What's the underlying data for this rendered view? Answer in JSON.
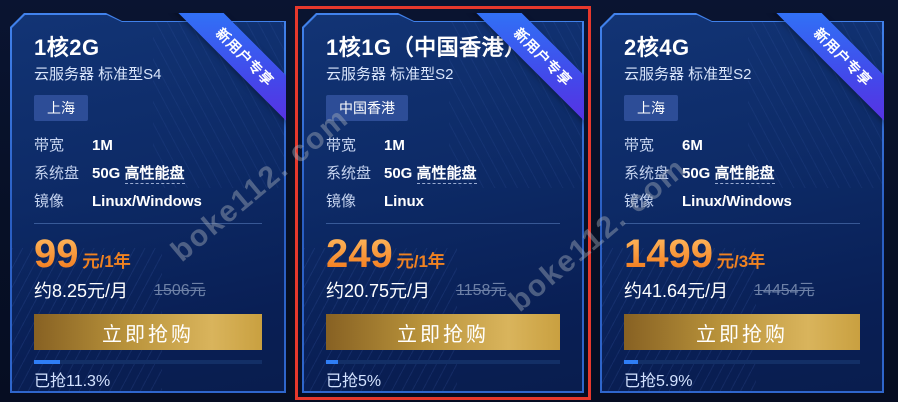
{
  "watermark": {
    "text": "boke112. com"
  },
  "ribbon": {
    "label": "新用户专享"
  },
  "colors": {
    "page_bg": "#070f26",
    "card_bg_top": "#123475",
    "card_bg_bottom": "#091d4e",
    "card_border": "#2f66cc",
    "highlight_border": "#e6382c",
    "ribbon_start": "#2f74f7",
    "ribbon_end": "#5b2ee2",
    "price_orange": "#ff9c30",
    "button_gold_start": "#876123",
    "button_gold_end": "#d9b45c",
    "progress_fill": "#2f7ef5",
    "region_tag_bg": "#2d4d97"
  },
  "cards": [
    {
      "title": "1核2G",
      "subtitle": "云服务器 标准型S4",
      "region_tag": "上海",
      "specs": {
        "bandwidth": {
          "label": "带宽",
          "value": "1M"
        },
        "disk": {
          "label": "系统盘",
          "value": "50G",
          "extra": "高性能盘"
        },
        "image": {
          "label": "镜像",
          "value": "Linux/Windows"
        }
      },
      "price": {
        "amount": "99",
        "unit": "元/1年"
      },
      "monthly": "约8.25元/月",
      "original_price": "1506元",
      "buy_label": "立即抢购",
      "sold_label": "已抢11.3%",
      "sold_percent": "11.3",
      "highlighted": false
    },
    {
      "title": "1核1G（中国香港）",
      "subtitle": "云服务器 标准型S2",
      "region_tag": "中国香港",
      "specs": {
        "bandwidth": {
          "label": "带宽",
          "value": "1M"
        },
        "disk": {
          "label": "系统盘",
          "value": "50G",
          "extra": "高性能盘"
        },
        "image": {
          "label": "镜像",
          "value": "Linux"
        }
      },
      "price": {
        "amount": "249",
        "unit": "元/1年"
      },
      "monthly": "约20.75元/月",
      "original_price": "1158元",
      "buy_label": "立即抢购",
      "sold_label": "已抢5%",
      "sold_percent": "5",
      "highlighted": true
    },
    {
      "title": "2核4G",
      "subtitle": "云服务器 标准型S2",
      "region_tag": "上海",
      "specs": {
        "bandwidth": {
          "label": "带宽",
          "value": "6M"
        },
        "disk": {
          "label": "系统盘",
          "value": "50G",
          "extra": "高性能盘"
        },
        "image": {
          "label": "镜像",
          "value": "Linux/Windows"
        }
      },
      "price": {
        "amount": "1499",
        "unit": "元/3年"
      },
      "monthly": "约41.64元/月",
      "original_price": "14454元",
      "buy_label": "立即抢购",
      "sold_label": "已抢5.9%",
      "sold_percent": "5.9",
      "highlighted": false
    }
  ]
}
